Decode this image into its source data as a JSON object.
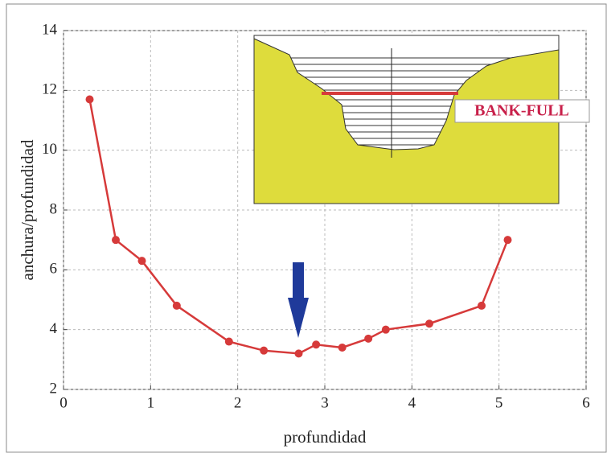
{
  "chart_data": {
    "type": "line",
    "x": [
      0.3,
      0.6,
      0.9,
      1.3,
      1.9,
      2.3,
      2.7,
      2.9,
      3.2,
      3.5,
      3.7,
      4.2,
      4.8,
      5.1
    ],
    "values": [
      11.7,
      7.0,
      6.3,
      4.8,
      3.6,
      3.3,
      3.2,
      3.5,
      3.4,
      3.7,
      4.0,
      4.2,
      4.8,
      7.0
    ],
    "color": "#d63a3a",
    "xlim": [
      0,
      6
    ],
    "ylim": [
      2,
      14
    ],
    "xticks": [
      0,
      1,
      2,
      3,
      4,
      5,
      6
    ],
    "yticks": [
      2,
      4,
      6,
      8,
      10,
      12,
      14
    ],
    "x_label": "profundidad",
    "y_label": "anchura/profundidad",
    "grid": true,
    "annotation": "BANK-FULL"
  }
}
